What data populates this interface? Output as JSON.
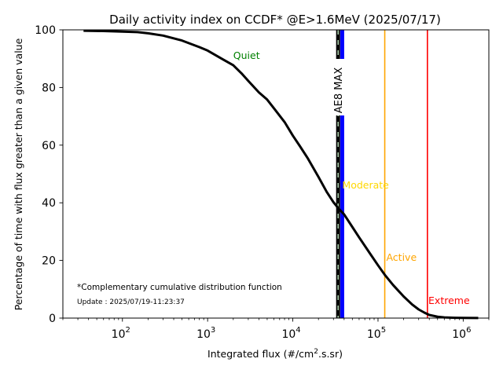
{
  "chart_data": {
    "type": "line",
    "title": "Daily activity index on CCDF* @E>1.6MeV (2025/07/17)",
    "xlabel": "Integrated flux (#/cm",
    "xlabel_sup": "2",
    "xlabel_suffix": ".s.sr)",
    "ylabel": "Percentage of time with flux greater than a given value",
    "x_scale": "log",
    "xlim": [
      20,
      2000000
    ],
    "ylim": [
      0,
      100
    ],
    "x_ticks": [
      {
        "base": "10",
        "exp": "2",
        "value": 100
      },
      {
        "base": "10",
        "exp": "3",
        "value": 1000
      },
      {
        "base": "10",
        "exp": "4",
        "value": 10000
      },
      {
        "base": "10",
        "exp": "5",
        "value": 100000
      },
      {
        "base": "10",
        "exp": "6",
        "value": 1000000
      }
    ],
    "y_ticks": [
      0,
      20,
      40,
      60,
      80,
      100
    ],
    "grid": false,
    "series": [
      {
        "color": "#000000",
        "x": [
          35,
          60,
          100,
          150,
          200,
          300,
          500,
          800,
          1000,
          1500,
          2000,
          2500,
          3000,
          4000,
          5000,
          6000,
          8000,
          10000,
          12000,
          15000,
          20000,
          25000,
          30000,
          35000,
          40000,
          50000,
          60000,
          80000,
          100000,
          120000,
          150000,
          200000,
          250000,
          300000,
          350000,
          400000,
          500000,
          600000,
          800000,
          1000000,
          1500000
        ],
        "y": [
          99.7,
          99.6,
          99.4,
          99.2,
          98.8,
          98.0,
          96.3,
          94.0,
          92.8,
          89.8,
          87.7,
          84.9,
          82.3,
          78.3,
          75.8,
          72.8,
          68.0,
          63.3,
          59.8,
          55.4,
          49.0,
          43.8,
          40.2,
          37.8,
          36.0,
          31.6,
          28.0,
          22.5,
          18.3,
          15.0,
          11.5,
          7.5,
          4.8,
          3.0,
          1.9,
          1.1,
          0.5,
          0.25,
          0.1,
          0.05,
          0.02
        ]
      }
    ],
    "thresholds": [
      {
        "label": "AE8 MAX",
        "value": 34000,
        "color": "#000000",
        "style": "black-white-dashed"
      },
      {
        "label": "",
        "value": 38000,
        "color": "#0000ff",
        "style": "blue-band"
      },
      {
        "label": "Quiet",
        "value": null,
        "color": "#008000",
        "label_x": 2000,
        "label_y": 91
      },
      {
        "label": "Moderate",
        "value": 37000,
        "color": "#ffd700",
        "label_x": 38000,
        "label_y": 46
      },
      {
        "label": "Active",
        "value": 120000,
        "color": "#ffa500",
        "label_x": 125000,
        "label_y": 21
      },
      {
        "label": "Extreme",
        "value": 380000,
        "color": "#ff0000",
        "label_x": 390000,
        "label_y": 6
      }
    ],
    "annotations": {
      "footnote": "*Complementary cumulative distribution function",
      "update": "Update : 2025/07/19-11:23:37"
    }
  }
}
